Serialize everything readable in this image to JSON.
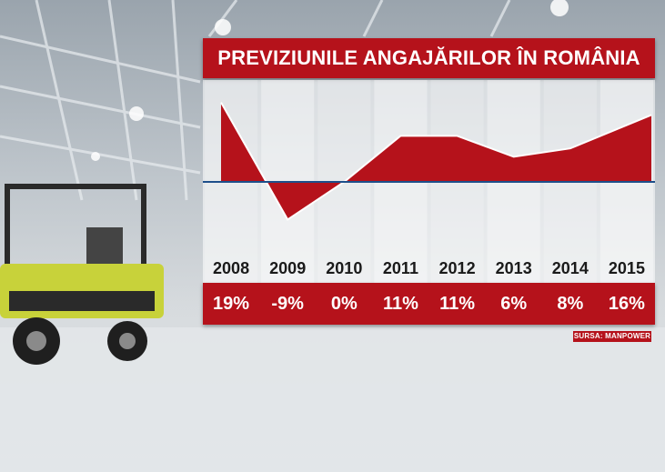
{
  "chart_data": {
    "type": "area",
    "title": "PREVIZIUNILE ANGAJĂRILOR ÎN ROMÂNIA",
    "categories": [
      "2008",
      "2009",
      "2010",
      "2011",
      "2012",
      "2013",
      "2014",
      "2015"
    ],
    "value_labels": [
      "19%",
      "-9%",
      "0%",
      "11%",
      "11%",
      "6%",
      "8%",
      "16%"
    ],
    "values": [
      19,
      -9,
      0,
      11,
      11,
      6,
      8,
      16
    ],
    "ylim": [
      -10,
      20
    ],
    "grid": false,
    "fill_color": "#b5121b",
    "baseline_color": "#1e4f8a"
  },
  "source": "SURSA: MANPOWER"
}
